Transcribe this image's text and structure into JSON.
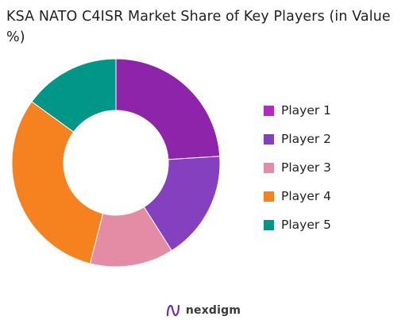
{
  "title": "KSA NATO C4ISR Market Share of Key Players (in Value %)",
  "brand": {
    "name": "nexdigm"
  },
  "chart_data": {
    "type": "pie",
    "subtype": "donut",
    "title": "KSA NATO C4ISR Market Share of Key Players (in Value %)",
    "legend_position": "right",
    "start": "top, clockwise",
    "categories": [
      "Player 1",
      "Player 2",
      "Player 3",
      "Player 4",
      "Player 5"
    ],
    "values": [
      24,
      17,
      13,
      31,
      15
    ],
    "colors": [
      "#8E24AA",
      "#8440BF",
      "#E48BA6",
      "#F5811F",
      "#009688"
    ],
    "legend_colors": [
      "#B528C4",
      "#8440BF",
      "#E48BA6",
      "#F5811F",
      "#009688"
    ]
  }
}
